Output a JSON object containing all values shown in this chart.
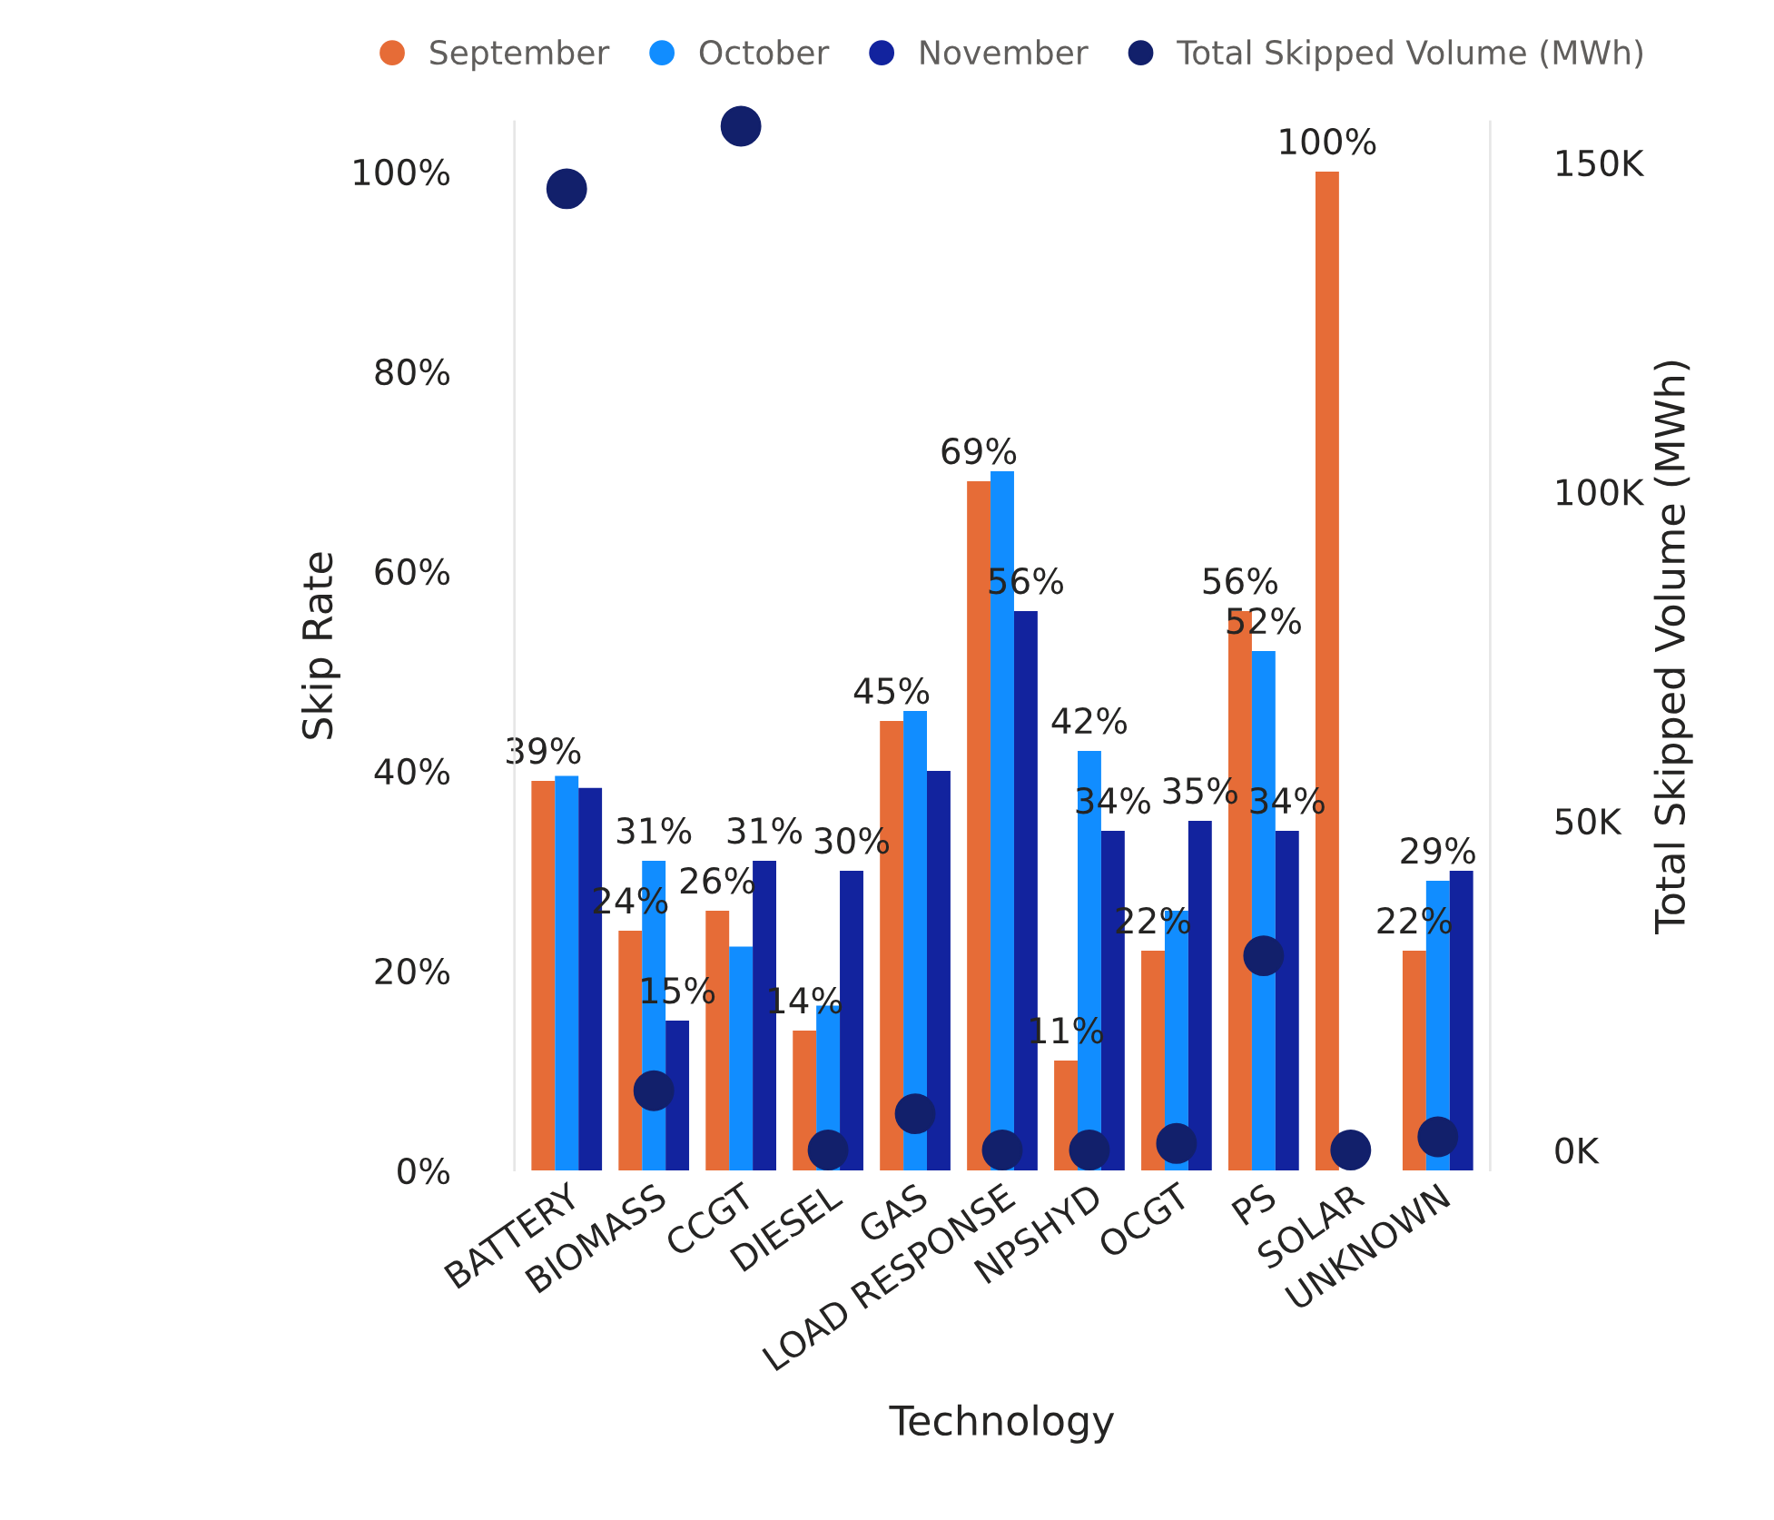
{
  "chart_data": {
    "type": "bar",
    "categories": [
      "BATTERY",
      "BIOMASS",
      "CCGT",
      "DIESEL",
      "GAS",
      "LOAD RESPONSE",
      "NPSHYD",
      "OCGT",
      "PS",
      "SOLAR",
      "UNKNOWN"
    ],
    "xlabel": "Technology",
    "ylabel": "Skip Rate",
    "y2label": "Total Skipped Volume (MWh)",
    "ylim": [
      0,
      105
    ],
    "yticks": [
      {
        "value": 0,
        "label": "0%"
      },
      {
        "value": 20,
        "label": "20%"
      },
      {
        "value": 40,
        "label": "40%"
      },
      {
        "value": 60,
        "label": "60%"
      },
      {
        "value": 80,
        "label": "80%"
      },
      {
        "value": 100,
        "label": "100%"
      }
    ],
    "y2lim": [
      -3100,
      156200
    ],
    "y2ticks": [
      {
        "value": 0,
        "label": "0K"
      },
      {
        "value": 50000,
        "label": "50K"
      },
      {
        "value": 100000,
        "label": "100K"
      },
      {
        "value": 150000,
        "label": "150K"
      }
    ],
    "series": [
      {
        "name": "September",
        "color": "#e66c37",
        "values": [
          39,
          24,
          26,
          14,
          45,
          69,
          11,
          22,
          56,
          100,
          22
        ],
        "value_labels": [
          "39%",
          "24%",
          "26%",
          "14%",
          "45%",
          "69%",
          "11%",
          "22%",
          "56%",
          "100%",
          "22%"
        ]
      },
      {
        "name": "October",
        "color": "#118dff",
        "values": [
          39.5,
          31,
          22.4,
          16.5,
          46,
          70,
          42,
          26,
          52,
          null,
          29
        ],
        "value_labels": [
          null,
          "31%",
          null,
          null,
          null,
          null,
          "42%",
          null,
          "52%",
          null,
          "29%"
        ]
      },
      {
        "name": "November",
        "color": "#12239e",
        "values": [
          38.3,
          15,
          31,
          30,
          40,
          56,
          34,
          35,
          34,
          null,
          30
        ],
        "value_labels": [
          null,
          "15%",
          "31%",
          "30%",
          null,
          "56%",
          "34%",
          "35%",
          "34%",
          null,
          null
        ]
      },
      {
        "name": "Total Skipped Volume (MWh)",
        "type": "scatter",
        "axis": "y2",
        "color": "#12206b",
        "marker": "circle",
        "values": [
          146000,
          9000,
          155500,
          0,
          5500,
          0,
          0,
          1000,
          29500,
          0,
          2000
        ]
      }
    ],
    "legend": "top",
    "grid": false
  }
}
